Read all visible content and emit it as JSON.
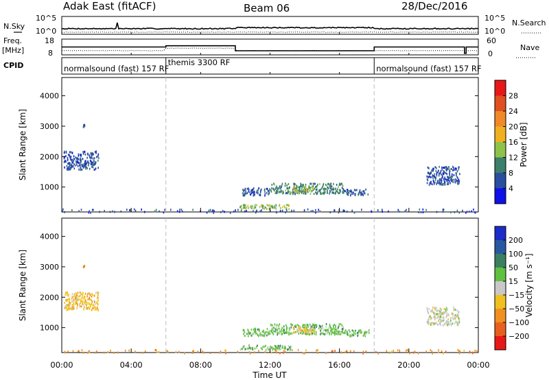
{
  "header": {
    "station": "Adak East (fitACF)",
    "beam": "Beam 06",
    "date": "28/Dec/2016"
  },
  "strip_labels": {
    "nsky": "N.Sky",
    "nsearch": "N.Search",
    "freq_line1": "Freq.",
    "freq_line2": "[MHz]",
    "nave": "Nave",
    "cpid": "CPID"
  },
  "strip_ticks": {
    "nsky_top": "10^5",
    "nsky_bottom": "10^0",
    "nsearch_top": "10^5",
    "nsearch_bottom": "10^0",
    "freq_top": "18",
    "freq_bottom": "8",
    "nave_top": "60",
    "nave_bottom": "0"
  },
  "cpid_segments": [
    {
      "label": "normalsound (fast)  157  RF",
      "start": 0,
      "end": 6
    },
    {
      "label": "themis  3300  RF",
      "start": 6,
      "end": 18
    },
    {
      "label": "normalsound (fast)  157  RF",
      "start": 18,
      "end": 24
    }
  ],
  "x_axis": {
    "label": "Time UT",
    "range": [
      0,
      24
    ],
    "ticks": [
      {
        "value": 0,
        "label": "00:00"
      },
      {
        "value": 4,
        "label": "04:00"
      },
      {
        "value": 8,
        "label": "08:00"
      },
      {
        "value": 12,
        "label": "12:00"
      },
      {
        "value": 16,
        "label": "16:00"
      },
      {
        "value": 20,
        "label": "20:00"
      },
      {
        "value": 24,
        "label": "00:00"
      }
    ]
  },
  "panels": {
    "power": {
      "ylabel": "Slant Range [km]",
      "yticks": [
        "1000",
        "2000",
        "3000",
        "4000"
      ],
      "colorbar_label": "Power [dB]",
      "colorbar_ticks": [
        "4",
        "8",
        "12",
        "16",
        "20",
        "24",
        "28"
      ],
      "colors": [
        "#1010e8",
        "#2a4fa0",
        "#3c7f6a",
        "#8ec24a",
        "#f0b020",
        "#f08a28",
        "#e05020",
        "#e81818"
      ]
    },
    "velocity": {
      "ylabel": "Slant Range [km]",
      "yticks": [
        "1000",
        "2000",
        "3000",
        "4000"
      ],
      "colorbar_label": "Velocity [m s⁻¹]",
      "colorbar_ticks": [
        "200",
        "100",
        "50",
        "15",
        "−15",
        "−50",
        "−100",
        "−200"
      ],
      "colors": [
        "#1c2cc8",
        "#2a58a0",
        "#3a8060",
        "#60c040",
        "#c8c8c8",
        "#f0c020",
        "#f09020",
        "#e86020",
        "#e81818"
      ]
    }
  },
  "chart_data": {
    "type": "heatmap",
    "x_units": "hours UT",
    "y_units": "km",
    "xlim": [
      0,
      24
    ],
    "ylim": [
      180,
      4600
    ],
    "freq_mhz": [
      {
        "start": 0,
        "end": 6,
        "value": 13.0
      },
      {
        "start": 6,
        "end": 10,
        "value": 13.8
      },
      {
        "start": 10,
        "end": 18,
        "value": 10.6
      },
      {
        "start": 18,
        "end": 23.2,
        "value": 13.0
      },
      {
        "start": 23.2,
        "end": 23.3,
        "value": 9.0
      },
      {
        "start": 23.3,
        "end": 24,
        "value": 13.0
      }
    ],
    "scatter_regions": [
      {
        "x": [
          0.1,
          2.1
        ],
        "y": [
          1600,
          2200
        ],
        "power_level": 1,
        "velocity_level": 5
      },
      {
        "x": [
          10.4,
          12.0
        ],
        "y": [
          750,
          1000
        ],
        "power_level": 1,
        "velocity_level": 3
      },
      {
        "x": [
          12.0,
          16.2
        ],
        "y": [
          800,
          1150
        ],
        "power_level": 2,
        "velocity_level": 3
      },
      {
        "x": [
          13.3,
          14.6
        ],
        "y": [
          850,
          1050
        ],
        "power_level": 3,
        "velocity_level": 5
      },
      {
        "x": [
          16.2,
          17.7
        ],
        "y": [
          750,
          950
        ],
        "power_level": 1,
        "velocity_level": 3
      },
      {
        "x": [
          10.2,
          13.2
        ],
        "y": [
          300,
          450
        ],
        "power_level": 3,
        "velocity_level": 3
      },
      {
        "x": [
          21.0,
          22.9
        ],
        "y": [
          1100,
          1700
        ],
        "power_level": 1,
        "velocity_level": 4
      },
      {
        "x": [
          0.0,
          24.0
        ],
        "y": [
          180,
          300
        ],
        "power_level": 1,
        "velocity_level": 6
      },
      {
        "x": [
          1.2,
          1.3
        ],
        "y": [
          3000,
          3080
        ],
        "power_level": 1,
        "velocity_level": 6
      }
    ]
  }
}
